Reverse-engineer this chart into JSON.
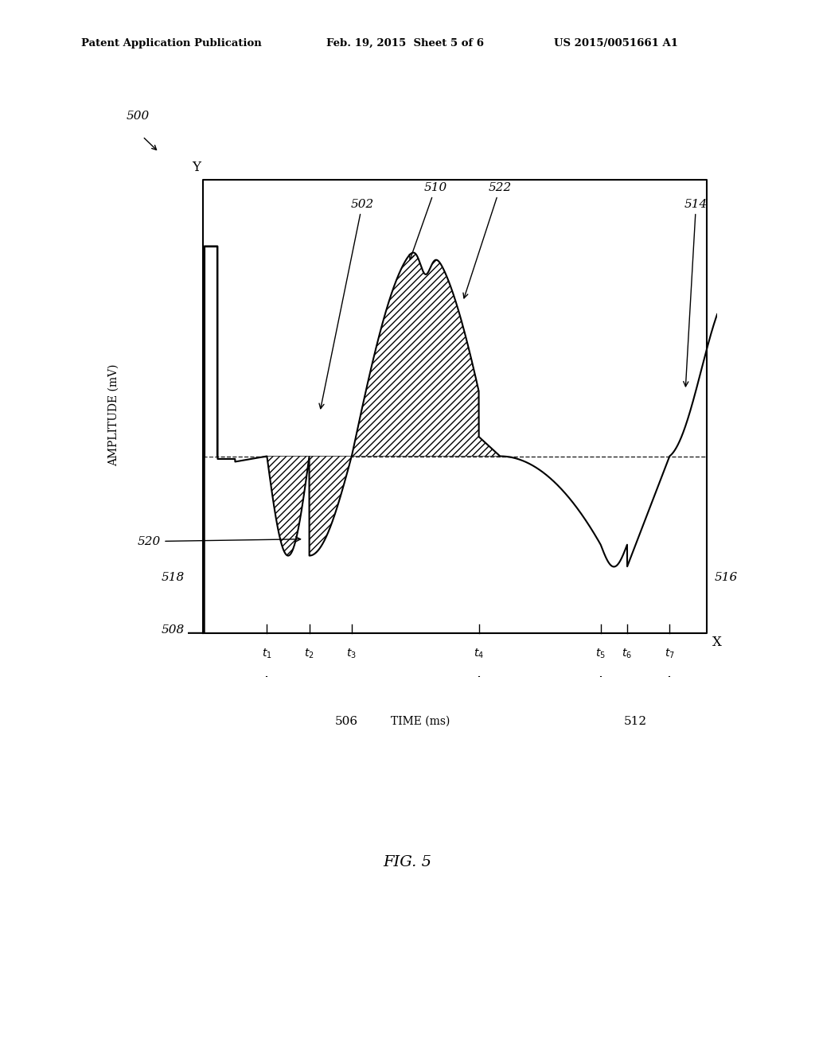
{
  "header_left": "Patent Application Publication",
  "header_mid": "Feb. 19, 2015  Sheet 5 of 6",
  "header_right": "US 2015/0051661 A1",
  "fig_label": "FIG. 5",
  "label_500": "500",
  "label_502": "502",
  "label_508": "508",
  "label_510": "510",
  "label_512": "512",
  "label_514": "514",
  "label_516": "516",
  "label_518": "518",
  "label_520": "520",
  "label_522": "522",
  "label_506": "506",
  "ylabel": "AMPLITUDE (mV)",
  "xlabel": "TIME (ms)",
  "background_color": "#ffffff",
  "line_color": "#000000",
  "t1": 1.5,
  "t2": 2.3,
  "t3": 3.1,
  "t4": 5.5,
  "t5": 7.8,
  "t6": 8.3,
  "t7": 9.1,
  "xlim": [
    0,
    10
  ],
  "ylim": [
    -4.0,
    5.5
  ]
}
